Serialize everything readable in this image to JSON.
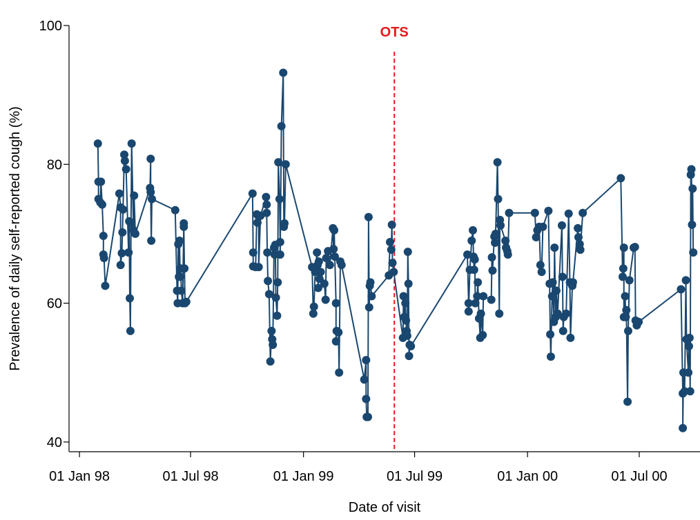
{
  "chart_data": {
    "type": "line",
    "ylabel": "Prevalence of daily self-reported cough (%)",
    "xlabel": "Date of visit",
    "color": "#1a476f",
    "annotation": {
      "text": "OTS",
      "x": "1999-05-29",
      "color": "#e41a1c"
    },
    "xlim": [
      "1997-12-15",
      "2000-10-08"
    ],
    "xticks": [
      {
        "value": "1998-01-01",
        "label": "01 Jan 98"
      },
      {
        "value": "1998-07-01",
        "label": "01 Jul 98"
      },
      {
        "value": "1999-01-01",
        "label": "01 Jan 99"
      },
      {
        "value": "1999-07-01",
        "label": "01 Jul 99"
      },
      {
        "value": "2000-01-01",
        "label": "01 Jan 00"
      },
      {
        "value": "2000-07-01",
        "label": "01 Jul 00"
      }
    ],
    "ylim": [
      38.6,
      100
    ],
    "yticks": [
      40,
      60,
      80,
      100
    ],
    "x": [
      "1998-01-31",
      "1998-02-01",
      "1998-02-01",
      "1998-02-04",
      "1998-02-05",
      "1998-02-07",
      "1998-02-09",
      "1998-02-09",
      "1998-02-10",
      "1998-02-12",
      "1998-03-07",
      "1998-03-09",
      "1998-03-09",
      "1998-03-11",
      "1998-03-12",
      "1998-03-13",
      "1998-03-15",
      "1998-03-16",
      "1998-03-18",
      "1998-03-22",
      "1998-03-23",
      "1998-03-24",
      "1998-03-25",
      "1998-03-26",
      "1998-03-27",
      "1998-03-30",
      "1998-03-31",
      "1998-04-02",
      "1998-04-26",
      "1998-04-27",
      "1998-04-27",
      "1998-04-28",
      "1998-04-29",
      "1998-06-06",
      "1998-06-09",
      "1998-06-10",
      "1998-06-11",
      "1998-06-12",
      "1998-06-13",
      "1998-06-14",
      "1998-06-15",
      "1998-06-16",
      "1998-06-18",
      "1998-06-20",
      "1998-06-20",
      "1998-06-21",
      "1998-06-22",
      "1998-06-24",
      "1998-10-10",
      "1998-10-11",
      "1998-10-11",
      "1998-10-15",
      "1998-10-17",
      "1998-10-18",
      "1998-10-20",
      "1998-10-20",
      "1998-10-23",
      "1998-11-01",
      "1998-11-02",
      "1998-11-02",
      "1998-11-03",
      "1998-11-04",
      "1998-11-06",
      "1998-11-08",
      "1998-11-10",
      "1998-11-11",
      "1998-11-12",
      "1998-11-14",
      "1998-11-15",
      "1998-11-16",
      "1998-11-17",
      "1998-11-19",
      "1998-11-20",
      "1998-11-21",
      "1998-11-23",
      "1998-11-24",
      "1998-11-24",
      "1998-11-26",
      "1998-11-29",
      "1998-11-30",
      "1998-12-01",
      "1998-12-03",
      "1999-01-15",
      "1999-01-17",
      "1999-01-18",
      "1999-01-20",
      "1999-01-23",
      "1999-01-24",
      "1999-01-25",
      "1999-01-26",
      "1999-01-27",
      "1999-01-29",
      "1999-02-04",
      "1999-02-06",
      "1999-02-07",
      "1999-02-10",
      "1999-02-13",
      "1999-02-18",
      "1999-02-19",
      "1999-02-20",
      "1999-02-21",
      "1999-02-23",
      "1999-02-23",
      "1999-02-24",
      "1999-02-27",
      "1999-02-28",
      "1999-03-02",
      "1999-03-04",
      "1999-04-10",
      "1999-04-13",
      "1999-04-13",
      "1999-04-14",
      "1999-04-16",
      "1999-04-17",
      "1999-04-18",
      "1999-04-19",
      "1999-04-20",
      "1999-04-22",
      "1999-05-20",
      "1999-05-22",
      "1999-05-24",
      "1999-05-25",
      "1999-05-26",
      "1999-05-28",
      "1999-06-12",
      "1999-06-13",
      "1999-06-14",
      "1999-06-16",
      "1999-06-17",
      "1999-06-18",
      "1999-06-19",
      "1999-06-20",
      "1999-06-21",
      "1999-06-22",
      "1999-06-23",
      "1999-06-25",
      "1999-09-25",
      "1999-09-27",
      "1999-09-27",
      "1999-09-29",
      "1999-10-02",
      "1999-10-04",
      "1999-10-05",
      "1999-10-06",
      "1999-10-07",
      "1999-10-08",
      "1999-10-11",
      "1999-10-12",
      "1999-10-14",
      "1999-10-16",
      "1999-10-17",
      "1999-10-20",
      "1999-10-21",
      "1999-11-03",
      "1999-11-04",
      "1999-11-05",
      "1999-11-08",
      "1999-11-09",
      "1999-11-10",
      "1999-11-13",
      "1999-11-14",
      "1999-11-16",
      "1999-11-17",
      "1999-11-18",
      "1999-11-26",
      "1999-11-27",
      "1999-11-29",
      "1999-11-30",
      "1999-12-02",
      "2000-01-13",
      "2000-01-15",
      "2000-01-17",
      "2000-01-20",
      "2000-01-22",
      "2000-01-24",
      "2000-01-26",
      "2000-02-04",
      "2000-02-06",
      "2000-02-07",
      "2000-02-08",
      "2000-02-10",
      "2000-02-11",
      "2000-02-13",
      "2000-02-14",
      "2000-02-16",
      "2000-02-17",
      "2000-02-19",
      "2000-02-26",
      "2000-02-27",
      "2000-02-28",
      "2000-02-29",
      "2000-03-04",
      "2000-03-08",
      "2000-03-10",
      "2000-03-11",
      "2000-03-14",
      "2000-03-15",
      "2000-03-23",
      "2000-03-24",
      "2000-03-26",
      "2000-03-27",
      "2000-03-31",
      "2000-06-01",
      "2000-06-04",
      "2000-06-05",
      "2000-06-06",
      "2000-06-06",
      "2000-06-08",
      "2000-06-09",
      "2000-06-10",
      "2000-06-12",
      "2000-06-13",
      "2000-06-15",
      "2000-06-22",
      "2000-06-24",
      "2000-06-25",
      "2000-06-27",
      "2000-06-30",
      "2000-09-07",
      "2000-09-10",
      "2000-09-10",
      "2000-09-11",
      "2000-09-13",
      "2000-09-15",
      "2000-09-16",
      "2000-09-19",
      "2000-09-20",
      "2000-09-21",
      "2000-09-22",
      "2000-09-23",
      "2000-09-24",
      "2000-09-25",
      "2000-09-26",
      "2000-09-27"
    ],
    "values": [
      83,
      77.5,
      75,
      74.5,
      77.5,
      74.2,
      69.7,
      67,
      66.5,
      62.5,
      75.8,
      73.8,
      65.5,
      67.2,
      70.2,
      73.5,
      81.4,
      80.5,
      79.3,
      67.3,
      71.8,
      60.7,
      56,
      71.5,
      83,
      70.5,
      75.5,
      70,
      76.6,
      80.8,
      76,
      69,
      75,
      73.4,
      61.8,
      60,
      68.5,
      63.8,
      69,
      63.8,
      65,
      61.8,
      60,
      71.5,
      71,
      65,
      60,
      60.2,
      75.8,
      67.3,
      65.3,
      65.2,
      72.8,
      71.6,
      72.5,
      65.2,
      72.6,
      75.3,
      74.2,
      73,
      67.3,
      63.2,
      61.3,
      51.6,
      56,
      54.8,
      54,
      68,
      67,
      68.4,
      60.8,
      58.2,
      63,
      80.3,
      75,
      68.8,
      67,
      85.5,
      93.2,
      71,
      71.5,
      80,
      65.2,
      58.5,
      59.5,
      64.5,
      67.3,
      65.5,
      62.2,
      66,
      63.5,
      64.5,
      62.8,
      60.5,
      66.5,
      67.5,
      65.5,
      70.8,
      67.8,
      70.5,
      66.7,
      60,
      54.5,
      56,
      55.8,
      50,
      66,
      65.5,
      49,
      51.8,
      46.2,
      43.6,
      43.6,
      72.4,
      59.4,
      62.5,
      63,
      61,
      64,
      68.8,
      67.7,
      71.3,
      65.8,
      64.5,
      55,
      61,
      58,
      60,
      57.5,
      56,
      55.3,
      67.4,
      62.8,
      52.4,
      54,
      53.8,
      67,
      60,
      58.8,
      64.8,
      69,
      70.5,
      66.7,
      64.8,
      66.3,
      60,
      61,
      63,
      57.8,
      55,
      58.5,
      55.4,
      61,
      60.5,
      66.6,
      64.7,
      69.6,
      68.7,
      70,
      80.3,
      75,
      58.5,
      72,
      71.2,
      69,
      68,
      67.5,
      67,
      73,
      73,
      69.5,
      70.5,
      71,
      65.5,
      64.5,
      71,
      73.3,
      62.8,
      55.5,
      52.3,
      61,
      63,
      57.3,
      68,
      58,
      61.8,
      58.5,
      71.2,
      63.8,
      56,
      58,
      58.5,
      72.9,
      63,
      55,
      62.5,
      63,
      70.8,
      69.5,
      68.5,
      67.7,
      73,
      78,
      63.8,
      65,
      68,
      58,
      61,
      58,
      59,
      45.8,
      56,
      63.3,
      68,
      68.1,
      57.5,
      56.8,
      57.3,
      62,
      47,
      42,
      50,
      47.3,
      63.3,
      54.8,
      50,
      53.8,
      55,
      47.3,
      78.5,
      79.3,
      71.3,
      76.5,
      67.3
    ]
  }
}
